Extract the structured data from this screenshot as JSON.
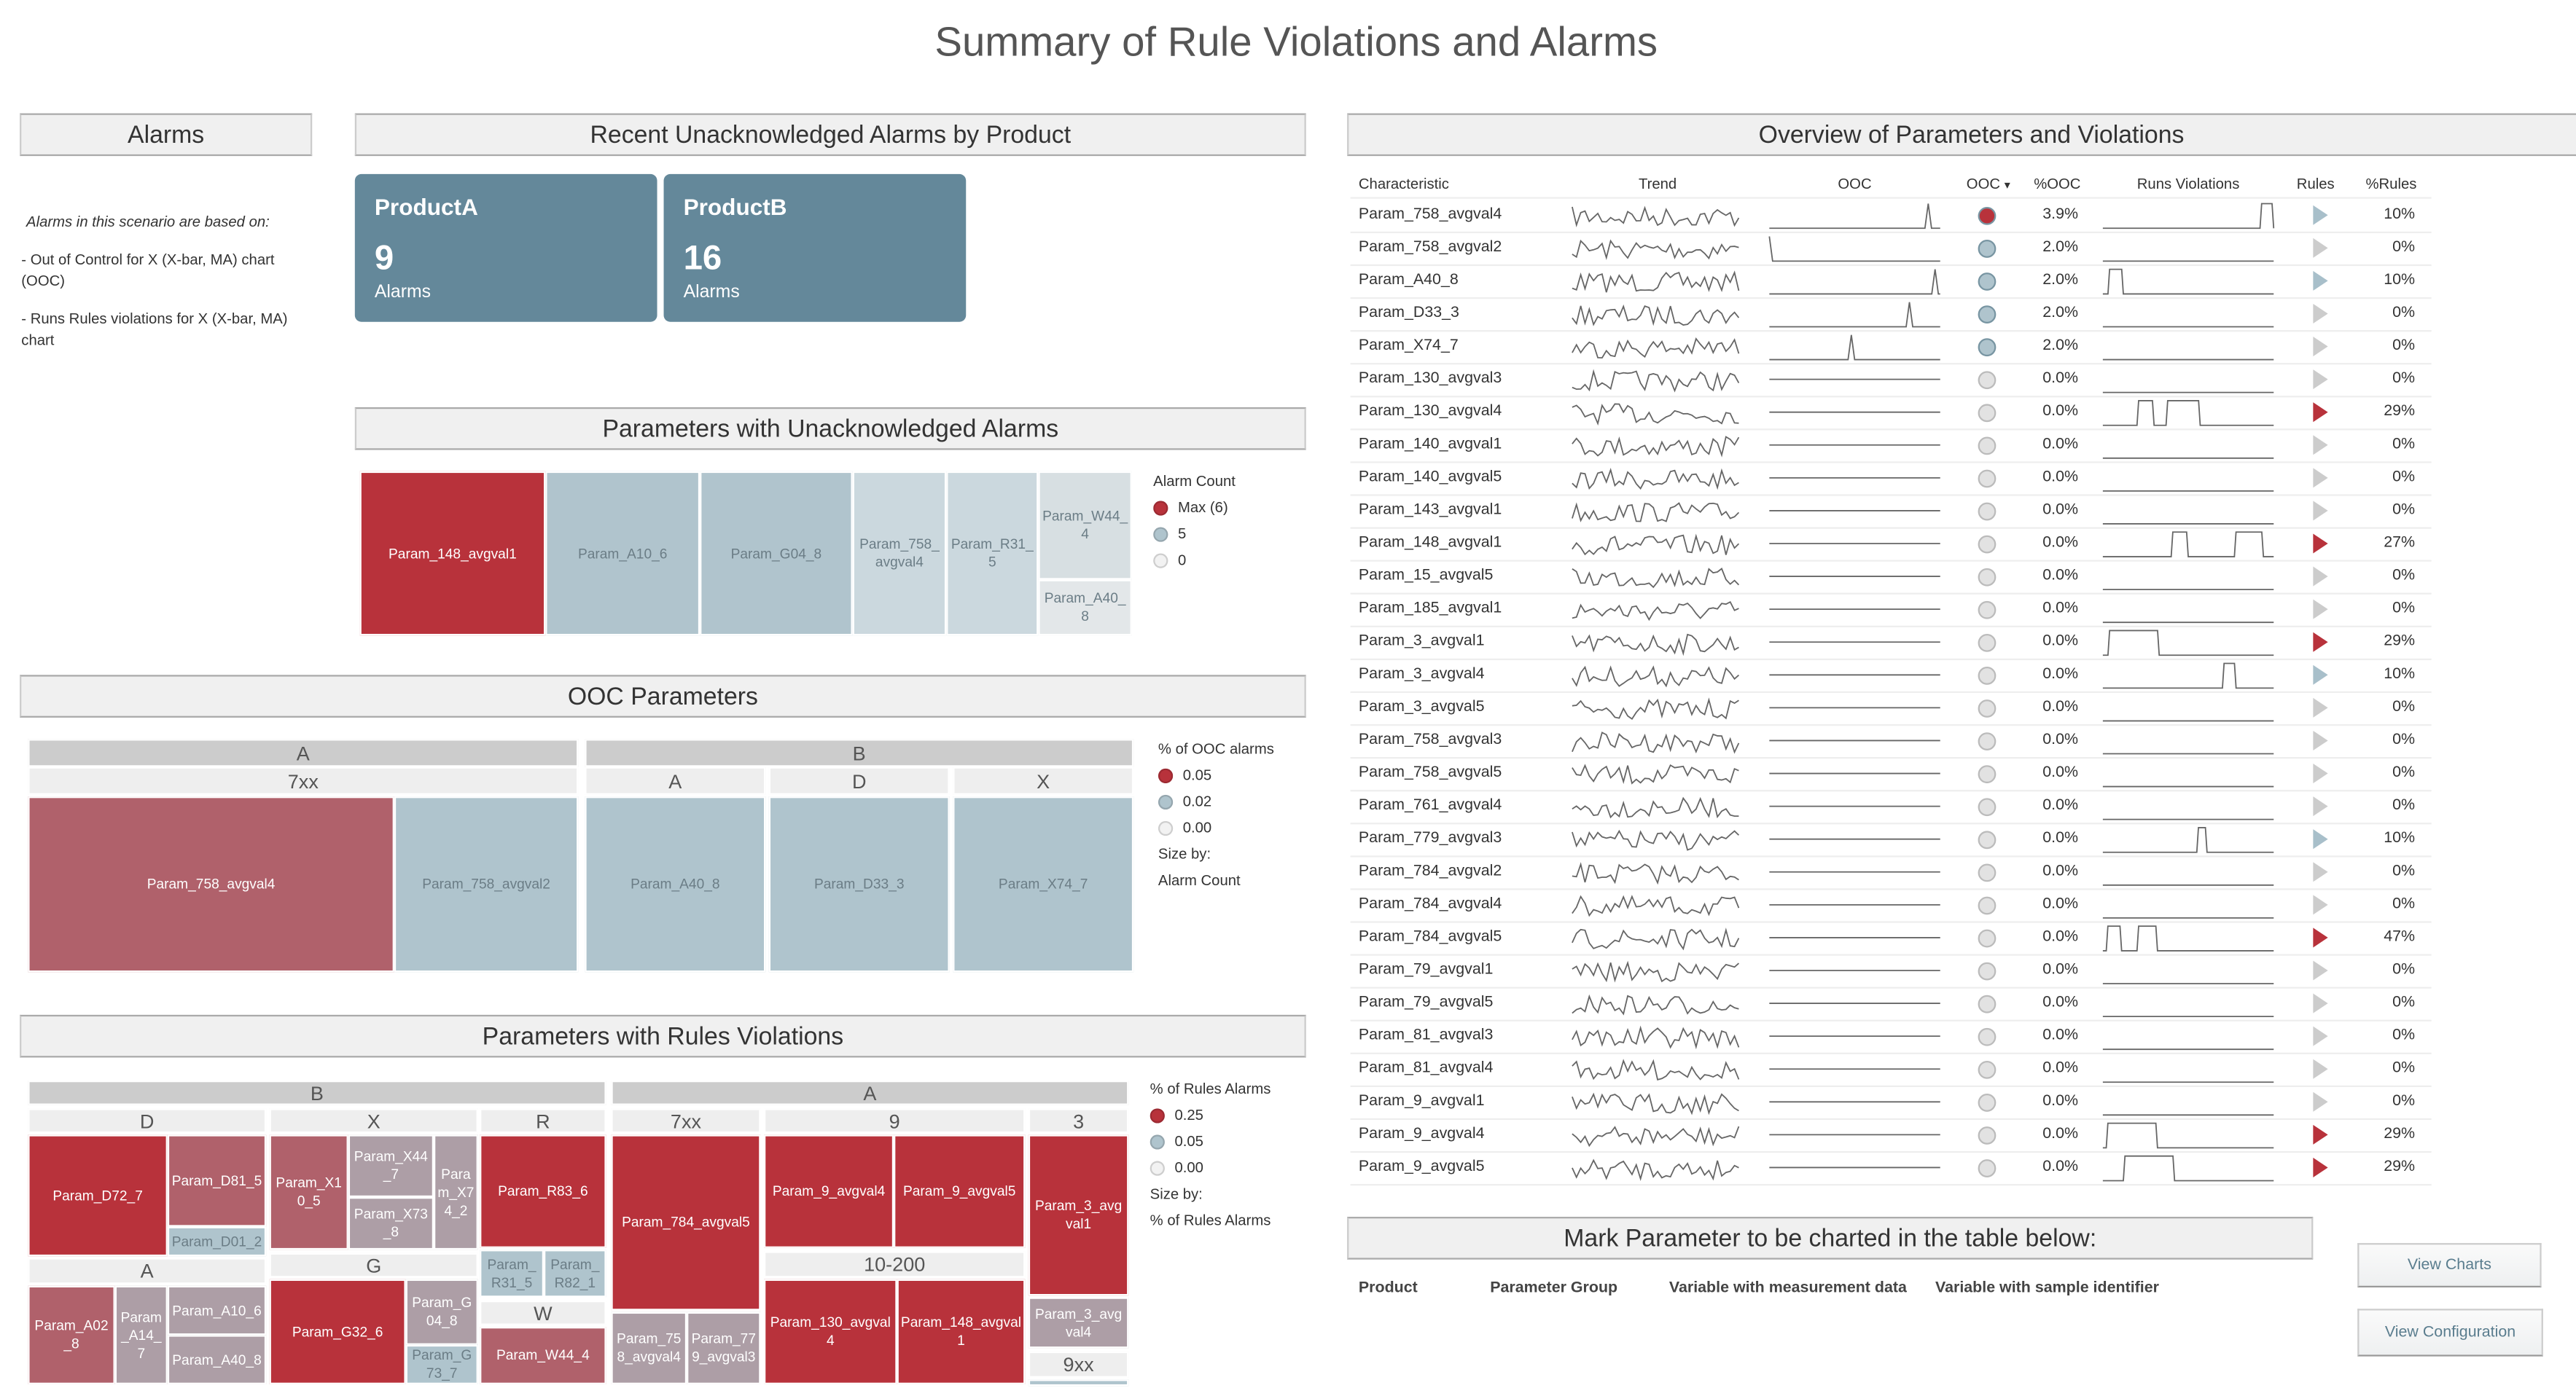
{
  "title": "Summary of Rule Violations and Alarms",
  "alarms_panel": {
    "header": "Alarms",
    "intro": "Alarms in this scenario are based on:",
    "items": [
      "- Out of Control for X (X-bar, MA) chart (OOC)",
      "- Runs Rules violations for X (X-bar, MA) chart"
    ]
  },
  "recent": {
    "header": "Recent Unacknowledged Alarms by Product",
    "cards": [
      {
        "product": "ProductA",
        "count": "9",
        "label": "Alarms"
      },
      {
        "product": "ProductB",
        "count": "16",
        "label": "Alarms"
      }
    ]
  },
  "colors": {
    "red": "#b8323b",
    "mid_red": "#b0616b",
    "mauve": "#ad9ea6",
    "blue": "#afc4cd",
    "light_blue": "#cbd8de",
    "lightest": "#dfe5e8",
    "card": "#64889a"
  },
  "unack": {
    "header": "Parameters with Unacknowledged Alarms",
    "legend": {
      "title": "Alarm Count",
      "items": [
        {
          "label": "Max (6)",
          "color": "#b8323b"
        },
        {
          "label": "5",
          "color": "#afc4cd"
        },
        {
          "label": "0",
          "color": "#f2f2f2"
        }
      ]
    },
    "tiles": [
      {
        "label": "Param_148_avgval1",
        "color": "#b8323b",
        "text": "#fff"
      },
      {
        "label": "Param_A10_6",
        "color": "#b0c4cd",
        "text": "#6b7d86"
      },
      {
        "label": "Param_G04_8",
        "color": "#b0c4cd",
        "text": "#6b7d86"
      },
      {
        "label": "Param_758_avgval4",
        "color": "#cbd8de",
        "text": "#6b7d86"
      },
      {
        "label": "Param_R31_5",
        "color": "#cbd8de",
        "text": "#6b7d86"
      },
      {
        "label": "Param_W44_4",
        "color": "#d7dfe2",
        "text": "#6b7d86"
      },
      {
        "label": "Param_A40_8",
        "color": "#e3e7e9",
        "text": "#6b7d86"
      }
    ]
  },
  "ooc": {
    "header": "OOC Parameters",
    "legend": {
      "title": "% of OOC alarms",
      "items": [
        {
          "label": "0.05",
          "color": "#b8323b"
        },
        {
          "label": "0.02",
          "color": "#afc4cd"
        },
        {
          "label": "0.00",
          "color": "#f2f2f2"
        }
      ],
      "size_by_label": "Size by:",
      "size_by": "Alarm Count"
    },
    "headers": [
      "A",
      "B",
      "7xx",
      "A",
      "D",
      "X"
    ],
    "tiles": [
      {
        "label": "Param_758_avgval4",
        "color": "#b0616b",
        "text": "#fff"
      },
      {
        "label": "Param_758_avgval2",
        "color": "#afc4cd",
        "text": "#6b7d86"
      },
      {
        "label": "Param_A40_8",
        "color": "#afc4cd",
        "text": "#6b7d86"
      },
      {
        "label": "Param_D33_3",
        "color": "#afc4cd",
        "text": "#6b7d86"
      },
      {
        "label": "Param_X74_7",
        "color": "#afc4cd",
        "text": "#6b7d86"
      }
    ]
  },
  "rules": {
    "header": "Parameters with Rules Violations",
    "legend": {
      "title": "% of Rules Alarms",
      "items": [
        {
          "label": "0.25",
          "color": "#b8323b"
        },
        {
          "label": "0.05",
          "color": "#afc4cd"
        },
        {
          "label": "0.00",
          "color": "#f2f2f2"
        }
      ],
      "size_by_label": "Size by:",
      "size_by": "% of Rules Alarms"
    },
    "headers": [
      "B",
      "A",
      "D",
      "X",
      "R",
      "7xx",
      "9",
      "3",
      "A",
      "G",
      "W",
      "10-200",
      "9xx"
    ],
    "tiles": [
      {
        "label": "Param_D72_7",
        "color": "#b8323b"
      },
      {
        "label": "Param_D81_5",
        "color": "#b0616b"
      },
      {
        "label": "Param_D01_2",
        "color": "#afc4cd"
      },
      {
        "label": "Param_A02_8",
        "color": "#b0616b"
      },
      {
        "label": "Param_A14_7",
        "color": "#ad9ea6"
      },
      {
        "label": "Param_A10_6",
        "color": "#ad9ea6"
      },
      {
        "label": "Param_A40_8",
        "color": "#ad9ea6"
      },
      {
        "label": "Param_X10_5",
        "color": "#b0616b"
      },
      {
        "label": "Param_X44_7",
        "color": "#ad9ea6"
      },
      {
        "label": "Param_X73_8",
        "color": "#ad9ea6"
      },
      {
        "label": "Param_X74_2",
        "color": "#ad9ea6"
      },
      {
        "label": "Param_G32_6",
        "color": "#b8323b"
      },
      {
        "label": "Param_G04_8",
        "color": "#ad9ea6"
      },
      {
        "label": "Param_G73_7",
        "color": "#afc4cd"
      },
      {
        "label": "Param_R83_6",
        "color": "#b8323b"
      },
      {
        "label": "Param_R31_5",
        "color": "#afc4cd"
      },
      {
        "label": "Param_R82_1",
        "color": "#afc4cd"
      },
      {
        "label": "Param_W44_4",
        "color": "#b0616b"
      },
      {
        "label": "Param_784_avgval5",
        "color": "#b8323b"
      },
      {
        "label": "Param_758_avgval4",
        "color": "#ad9ea6"
      },
      {
        "label": "Param_779_avgval3",
        "color": "#ad9ea6"
      },
      {
        "label": "Param_9_avgval4",
        "color": "#b8323b"
      },
      {
        "label": "Param_9_avgval5",
        "color": "#b8323b"
      },
      {
        "label": "Param_130_avgval4",
        "color": "#b8323b"
      },
      {
        "label": "Param_148_avgval1",
        "color": "#b8323b"
      },
      {
        "label": "Param_3_avgval1",
        "color": "#b8323b"
      },
      {
        "label": "Param_3_avgval4",
        "color": "#ad9ea6"
      },
      {
        "label": "",
        "color": "#afc4cd"
      }
    ]
  },
  "overview": {
    "header": "Overview of Parameters and Violations",
    "columns": [
      "Characteristic",
      "Trend",
      "OOC",
      "OOC",
      "%OOC",
      "Runs Violations",
      "Rules",
      "%Rules"
    ],
    "sort_icon": "sort-desc-icon",
    "rows": [
      {
        "name": "Param_758_avgval4",
        "pct_ooc": "3.9%",
        "ooc_state": "red",
        "ooc_spike": 0.93,
        "pct_rules": "10%",
        "rules_state": "blue",
        "runs": [
          [
            0.92,
            1.0
          ]
        ]
      },
      {
        "name": "Param_758_avgval2",
        "pct_ooc": "2.0%",
        "ooc_state": "blue",
        "ooc_spike": 0.0,
        "pct_rules": "0%",
        "rules_state": "grey",
        "runs": []
      },
      {
        "name": "Param_A40_8",
        "pct_ooc": "2.0%",
        "ooc_state": "blue",
        "ooc_spike": 0.97,
        "pct_rules": "10%",
        "rules_state": "blue",
        "runs": [
          [
            0.03,
            0.12
          ]
        ]
      },
      {
        "name": "Param_D33_3",
        "pct_ooc": "2.0%",
        "ooc_state": "blue",
        "ooc_spike": 0.82,
        "pct_rules": "0%",
        "rules_state": "grey",
        "runs": []
      },
      {
        "name": "Param_X74_7",
        "pct_ooc": "2.0%",
        "ooc_state": "blue",
        "ooc_spike": 0.48,
        "pct_rules": "0%",
        "rules_state": "grey",
        "runs": []
      },
      {
        "name": "Param_130_avgval3",
        "pct_ooc": "0.0%",
        "ooc_state": "grey",
        "pct_rules": "0%",
        "rules_state": "grey",
        "runs": []
      },
      {
        "name": "Param_130_avgval4",
        "pct_ooc": "0.0%",
        "ooc_state": "grey",
        "pct_rules": "29%",
        "rules_state": "red",
        "runs": [
          [
            0.2,
            0.3
          ],
          [
            0.37,
            0.57
          ]
        ]
      },
      {
        "name": "Param_140_avgval1",
        "pct_ooc": "0.0%",
        "ooc_state": "grey",
        "pct_rules": "0%",
        "rules_state": "grey",
        "runs": []
      },
      {
        "name": "Param_140_avgval5",
        "pct_ooc": "0.0%",
        "ooc_state": "grey",
        "pct_rules": "0%",
        "rules_state": "grey",
        "runs": []
      },
      {
        "name": "Param_143_avgval1",
        "pct_ooc": "0.0%",
        "ooc_state": "grey",
        "pct_rules": "0%",
        "rules_state": "grey",
        "runs": []
      },
      {
        "name": "Param_148_avgval1",
        "pct_ooc": "0.0%",
        "ooc_state": "grey",
        "pct_rules": "27%",
        "rules_state": "red",
        "runs": [
          [
            0.4,
            0.5
          ],
          [
            0.77,
            0.94
          ]
        ]
      },
      {
        "name": "Param_15_avgval5",
        "pct_ooc": "0.0%",
        "ooc_state": "grey",
        "pct_rules": "0%",
        "rules_state": "grey",
        "runs": []
      },
      {
        "name": "Param_185_avgval1",
        "pct_ooc": "0.0%",
        "ooc_state": "grey",
        "pct_rules": "0%",
        "rules_state": "grey",
        "runs": []
      },
      {
        "name": "Param_3_avgval1",
        "pct_ooc": "0.0%",
        "ooc_state": "grey",
        "pct_rules": "29%",
        "rules_state": "red",
        "runs": [
          [
            0.03,
            0.33
          ]
        ]
      },
      {
        "name": "Param_3_avgval4",
        "pct_ooc": "0.0%",
        "ooc_state": "grey",
        "pct_rules": "10%",
        "rules_state": "blue",
        "runs": [
          [
            0.7,
            0.78
          ]
        ]
      },
      {
        "name": "Param_3_avgval5",
        "pct_ooc": "0.0%",
        "ooc_state": "grey",
        "pct_rules": "0%",
        "rules_state": "grey",
        "runs": []
      },
      {
        "name": "Param_758_avgval3",
        "pct_ooc": "0.0%",
        "ooc_state": "grey",
        "pct_rules": "0%",
        "rules_state": "grey",
        "runs": []
      },
      {
        "name": "Param_758_avgval5",
        "pct_ooc": "0.0%",
        "ooc_state": "grey",
        "pct_rules": "0%",
        "rules_state": "grey",
        "runs": []
      },
      {
        "name": "Param_761_avgval4",
        "pct_ooc": "0.0%",
        "ooc_state": "grey",
        "pct_rules": "0%",
        "rules_state": "grey",
        "runs": []
      },
      {
        "name": "Param_779_avgval3",
        "pct_ooc": "0.0%",
        "ooc_state": "grey",
        "pct_rules": "10%",
        "rules_state": "blue",
        "runs": [
          [
            0.55,
            0.61
          ]
        ]
      },
      {
        "name": "Param_784_avgval2",
        "pct_ooc": "0.0%",
        "ooc_state": "grey",
        "pct_rules": "0%",
        "rules_state": "grey",
        "runs": []
      },
      {
        "name": "Param_784_avgval4",
        "pct_ooc": "0.0%",
        "ooc_state": "grey",
        "pct_rules": "0%",
        "rules_state": "grey",
        "runs": []
      },
      {
        "name": "Param_784_avgval5",
        "pct_ooc": "0.0%",
        "ooc_state": "grey",
        "pct_rules": "47%",
        "rules_state": "red",
        "runs": [
          [
            0.02,
            0.11
          ],
          [
            0.2,
            0.32
          ]
        ]
      },
      {
        "name": "Param_79_avgval1",
        "pct_ooc": "0.0%",
        "ooc_state": "grey",
        "pct_rules": "0%",
        "rules_state": "grey",
        "runs": []
      },
      {
        "name": "Param_79_avgval5",
        "pct_ooc": "0.0%",
        "ooc_state": "grey",
        "pct_rules": "0%",
        "rules_state": "grey",
        "runs": []
      },
      {
        "name": "Param_81_avgval3",
        "pct_ooc": "0.0%",
        "ooc_state": "grey",
        "pct_rules": "0%",
        "rules_state": "grey",
        "runs": []
      },
      {
        "name": "Param_81_avgval4",
        "pct_ooc": "0.0%",
        "ooc_state": "grey",
        "pct_rules": "0%",
        "rules_state": "grey",
        "runs": []
      },
      {
        "name": "Param_9_avgval1",
        "pct_ooc": "0.0%",
        "ooc_state": "grey",
        "pct_rules": "0%",
        "rules_state": "grey",
        "runs": []
      },
      {
        "name": "Param_9_avgval4",
        "pct_ooc": "0.0%",
        "ooc_state": "grey",
        "pct_rules": "29%",
        "rules_state": "red",
        "runs": [
          [
            0.02,
            0.32
          ]
        ]
      },
      {
        "name": "Param_9_avgval5",
        "pct_ooc": "0.0%",
        "ooc_state": "grey",
        "pct_rules": "29%",
        "rules_state": "red",
        "runs": [
          [
            0.12,
            0.42
          ]
        ]
      }
    ]
  },
  "mark": {
    "header": "Mark Parameter to be charted in the table below:",
    "columns": [
      "Product",
      "Parameter Group",
      "Variable with measurement data",
      "Variable with sample identifier"
    ]
  },
  "buttons": {
    "view_charts": "View Charts",
    "view_configuration": "View Configuration"
  }
}
